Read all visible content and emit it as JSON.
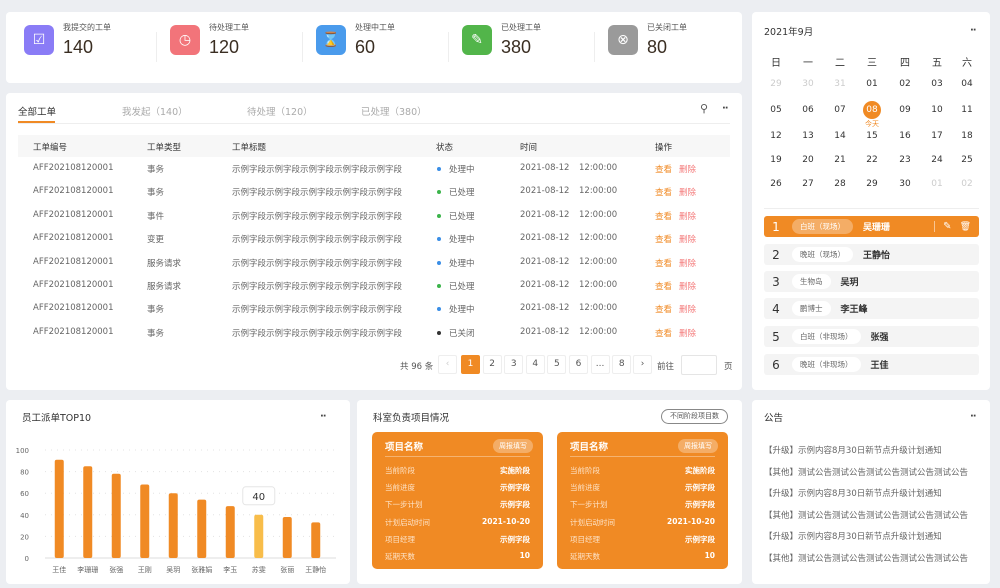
{
  "stats": [
    {
      "label": "我提交的工单",
      "value": "140",
      "icon": "inbox-check-icon",
      "color": "#8a7cf6"
    },
    {
      "label": "待处理工单",
      "value": "120",
      "icon": "clock-icon",
      "color": "#f2747a"
    },
    {
      "label": "处理中工单",
      "value": "60",
      "icon": "hourglass-icon",
      "color": "#4a9bec"
    },
    {
      "label": "已处理工单",
      "value": "380",
      "icon": "document-check-icon",
      "color": "#52b54a"
    },
    {
      "label": "已关闭工单",
      "value": "80",
      "icon": "close-circle-icon",
      "color": "#9a9a9a"
    }
  ],
  "tabs": [
    "全部工单",
    "我发起（140）",
    "待处理（120）",
    "已处理（380）"
  ],
  "table": {
    "headers": [
      "工单编号",
      "工单类型",
      "工单标题",
      "状态",
      "时间",
      "操作"
    ],
    "rows": [
      {
        "id": "AFF202108120001",
        "type": "事务",
        "title": "示例字段示例字段示例字段示例字段示例字段",
        "status": "处理中",
        "date": "2021-08-12",
        "time": "12:00:00"
      },
      {
        "id": "AFF202108120001",
        "type": "事务",
        "title": "示例字段示例字段示例字段示例字段示例字段",
        "status": "已处理",
        "date": "2021-08-12",
        "time": "12:00:00"
      },
      {
        "id": "AFF202108120001",
        "type": "事件",
        "title": "示例字段示例字段示例字段示例字段示例字段",
        "status": "已处理",
        "date": "2021-08-12",
        "time": "12:00:00"
      },
      {
        "id": "AFF202108120001",
        "type": "变更",
        "title": "示例字段示例字段示例字段示例字段示例字段",
        "status": "处理中",
        "date": "2021-08-12",
        "time": "12:00:00"
      },
      {
        "id": "AFF202108120001",
        "type": "服务请求",
        "title": "示例字段示例字段示例字段示例字段示例字段",
        "status": "处理中",
        "date": "2021-08-12",
        "time": "12:00:00"
      },
      {
        "id": "AFF202108120001",
        "type": "服务请求",
        "title": "示例字段示例字段示例字段示例字段示例字段",
        "status": "已处理",
        "date": "2021-08-12",
        "time": "12:00:00"
      },
      {
        "id": "AFF202108120001",
        "type": "事务",
        "title": "示例字段示例字段示例字段示例字段示例字段",
        "status": "处理中",
        "date": "2021-08-12",
        "time": "12:00:00"
      },
      {
        "id": "AFF202108120001",
        "type": "事务",
        "title": "示例字段示例字段示例字段示例字段示例字段",
        "status": "已关闭",
        "date": "2021-08-12",
        "time": "12:00:00"
      }
    ],
    "view_label": "查看",
    "delete_label": "删除",
    "status_colors": {
      "处理中": "#3a8ee6",
      "已处理": "#3cb44b",
      "已关闭": "#333333"
    }
  },
  "pagination": {
    "total": "共 96 条",
    "pages": [
      "1",
      "2",
      "3",
      "4",
      "5",
      "6",
      "...",
      "8"
    ],
    "current": "1",
    "goto_label": "前往",
    "page_suffix": "页",
    "goto_value": ""
  },
  "calendar": {
    "title": "2021年9月",
    "weekdays": [
      "日",
      "一",
      "二",
      "三",
      "四",
      "五",
      "六"
    ],
    "weeks": [
      [
        "29",
        "30",
        "31",
        "01",
        "02",
        "03",
        "04"
      ],
      [
        "05",
        "06",
        "07",
        "08",
        "09",
        "10",
        "11"
      ],
      [
        "12",
        "13",
        "14",
        "15",
        "16",
        "17",
        "18"
      ],
      [
        "19",
        "20",
        "21",
        "22",
        "23",
        "24",
        "25"
      ],
      [
        "26",
        "27",
        "28",
        "29",
        "30",
        "01",
        "02"
      ]
    ],
    "today": "08",
    "today_label": "今天"
  },
  "duty": [
    {
      "n": "1",
      "tag": "白班（现场）",
      "name": "吴珊珊"
    },
    {
      "n": "2",
      "tag": "晚班（现场）",
      "name": "王静怡"
    },
    {
      "n": "3",
      "tag": "生物岛",
      "name": "吴玥"
    },
    {
      "n": "4",
      "tag": "鹏博士",
      "name": "李王峰"
    },
    {
      "n": "5",
      "tag": "白班（非现场）",
      "name": "张强"
    },
    {
      "n": "6",
      "tag": "晚班（非现场）",
      "name": "王佳"
    }
  ],
  "chart_panel": {
    "title": "员工派单TOP10"
  },
  "chart_data": {
    "type": "bar",
    "title": "员工派单TOP10",
    "categories": [
      "王佳",
      "李珊珊",
      "张强",
      "王刚",
      "吴玥",
      "张雅娟",
      "李玉",
      "苏雯",
      "张丽",
      "王静怡"
    ],
    "values": [
      91,
      85,
      78,
      68,
      60,
      54,
      48,
      40,
      38,
      33
    ],
    "ylim": [
      0,
      100
    ],
    "yticks": [
      0,
      20,
      40,
      60,
      80,
      100
    ],
    "grid": true,
    "highlight_index": 7,
    "tooltip": "40",
    "colors": {
      "bar": "#f08a24",
      "highlight": "#f8bd4a"
    }
  },
  "projects": {
    "title": "科室负责项目情况",
    "filter_button": "不同阶段项目数",
    "cards": [
      {
        "name": "项目名称",
        "action": "周报填写",
        "fields": [
          [
            "当前阶段",
            "实施阶段"
          ],
          [
            "当前进度",
            "示例字段"
          ],
          [
            "下一步计划",
            "示例字段"
          ],
          [
            "计划启动时间",
            "2021-10-20"
          ],
          [
            "项目经理",
            "示例字段"
          ],
          [
            "延期天数",
            "10"
          ]
        ]
      },
      {
        "name": "项目名称",
        "action": "周报填写",
        "fields": [
          [
            "当前阶段",
            "实施阶段"
          ],
          [
            "当前进度",
            "示例字段"
          ],
          [
            "下一步计划",
            "示例字段"
          ],
          [
            "计划启动时间",
            "2021-10-20"
          ],
          [
            "项目经理",
            "示例字段"
          ],
          [
            "延期天数",
            "10"
          ]
        ]
      }
    ]
  },
  "notices": {
    "title": "公告",
    "items": [
      "【升级】示例内容8月30日新节点升级计划通知",
      "【其他】测试公告测试公告测试公告测试公告测试公告",
      "【升级】示例内容8月30日新节点升级计划通知",
      "【其他】测试公告测试公告测试公告测试公告测试公告",
      "【升级】示例内容8月30日新节点升级计划通知",
      "【其他】测试公告测试公告测试公告测试公告测试公告"
    ]
  },
  "accent": "#f08a24"
}
